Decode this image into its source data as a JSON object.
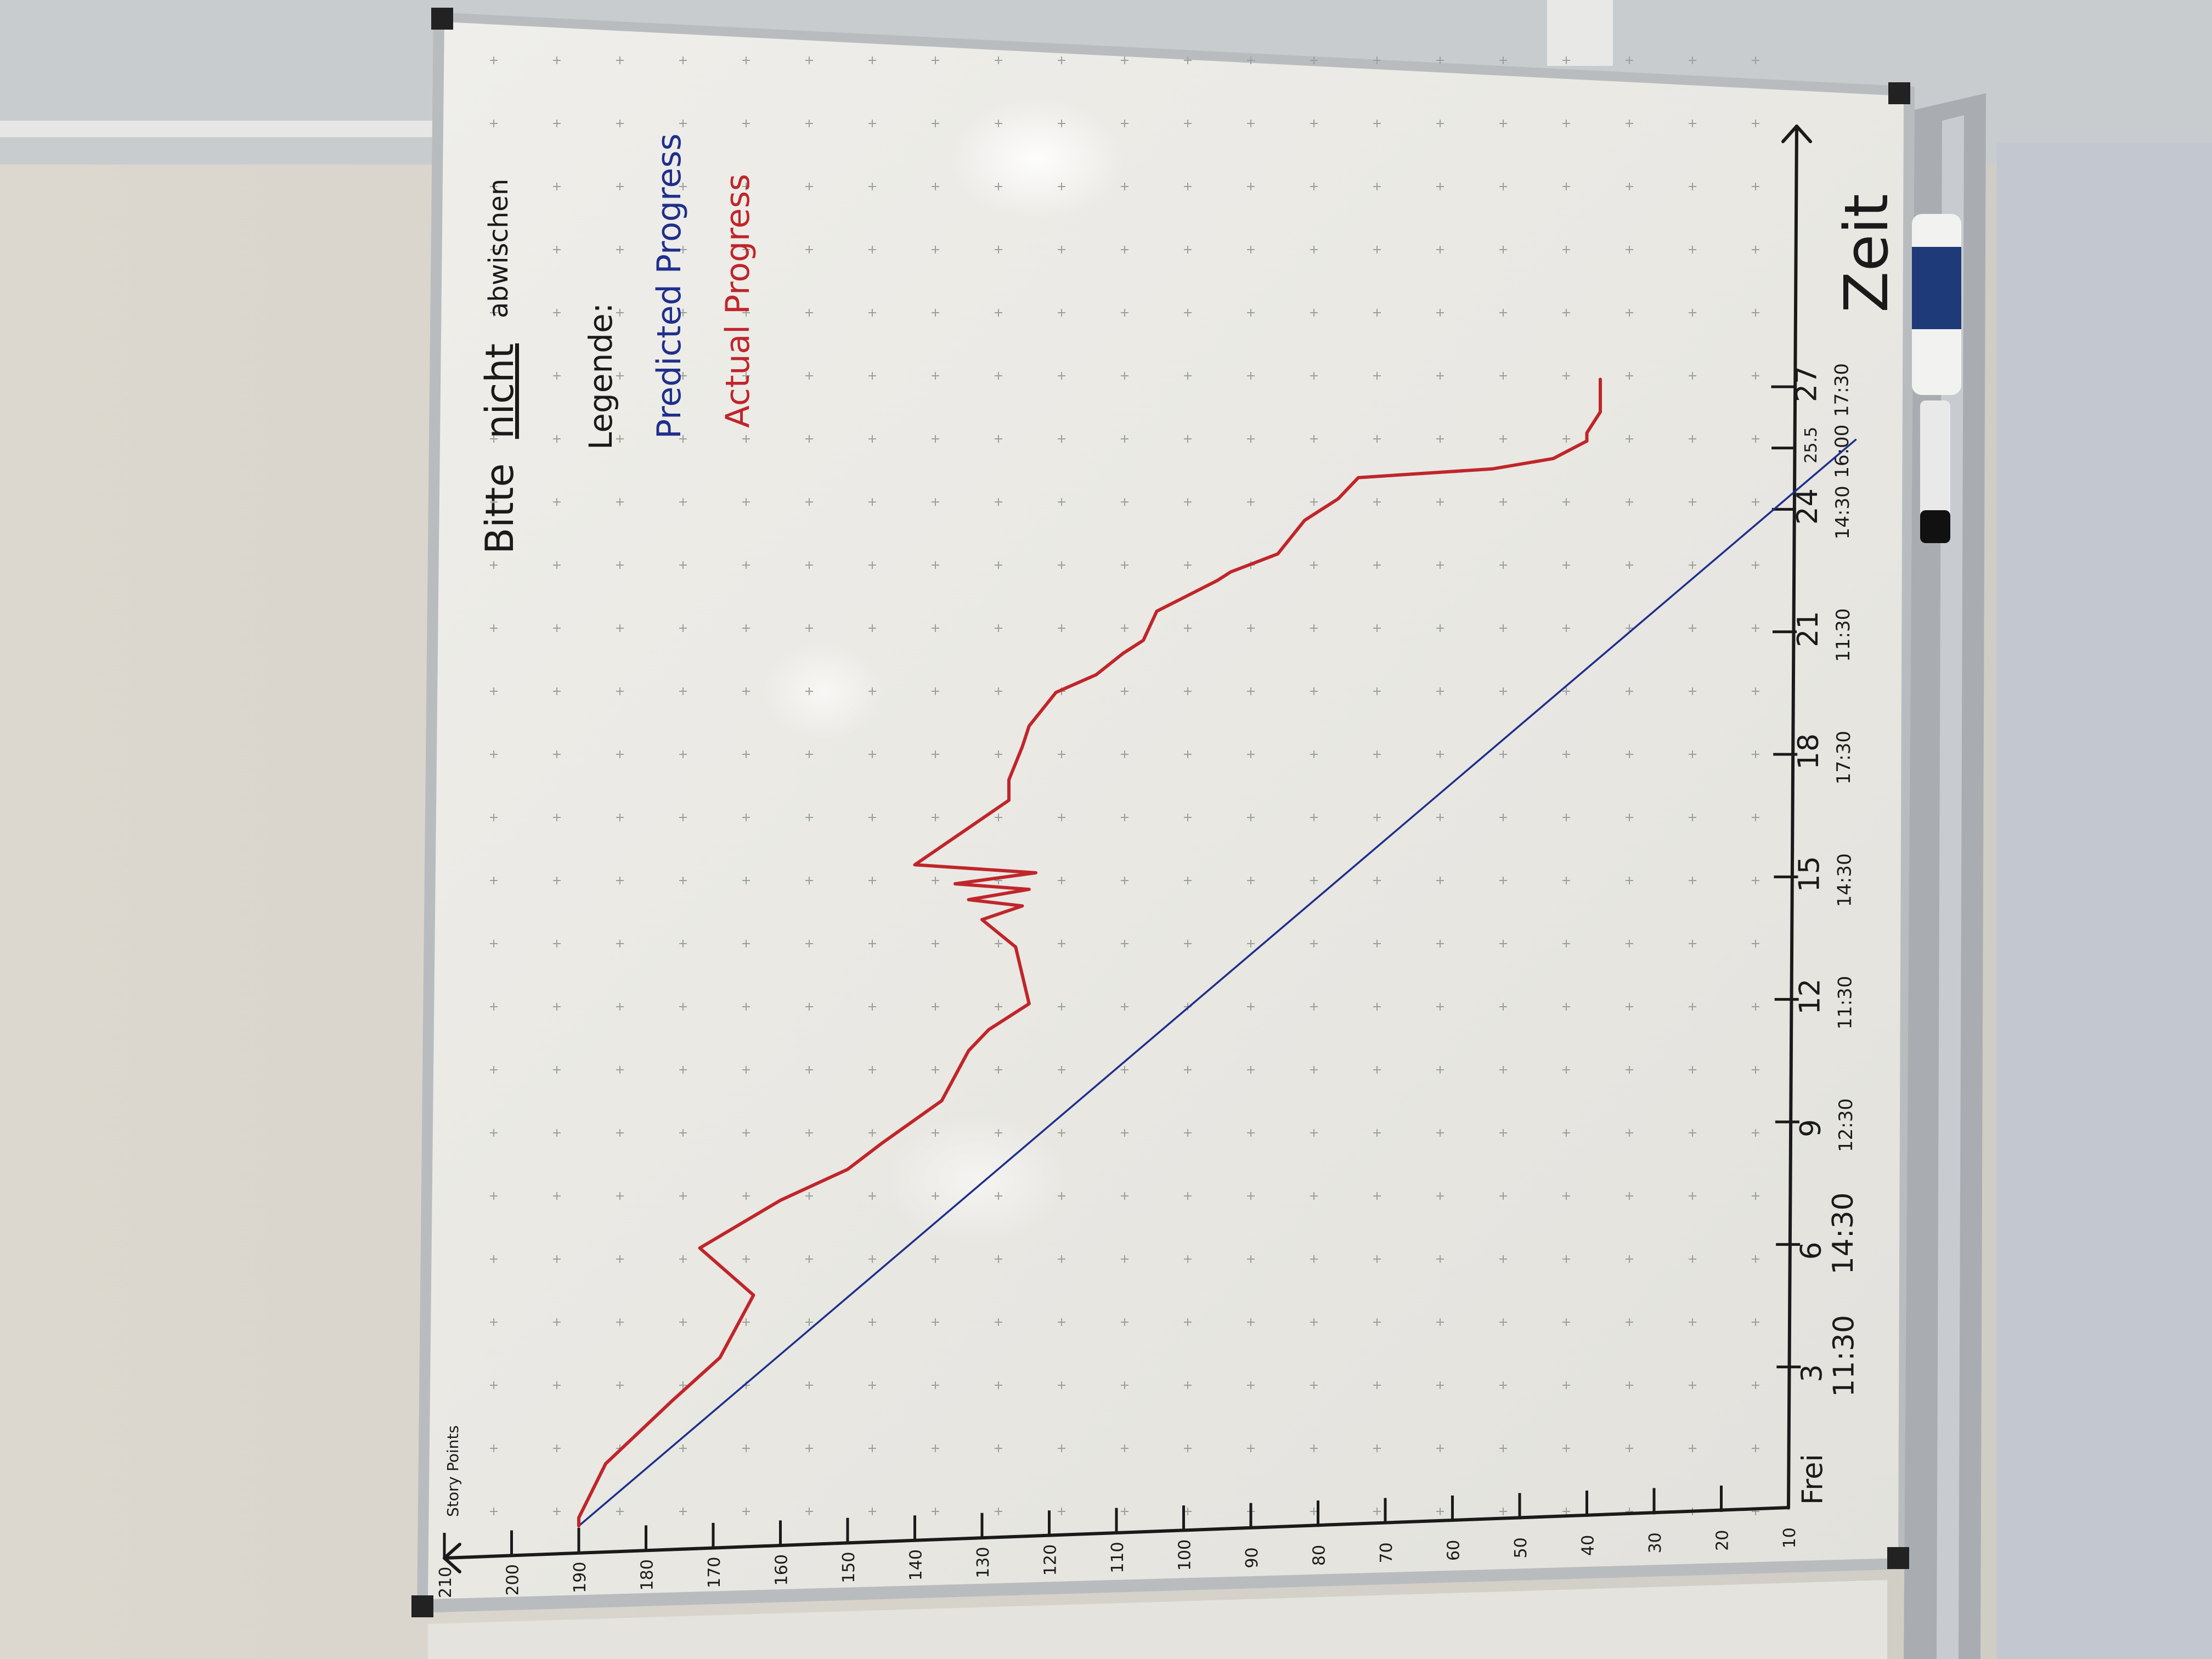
{
  "board": {
    "note_prefix": "Bitte",
    "note_emph": "nicht",
    "note_suffix": "abwischen",
    "legend_title": "Legende:",
    "legend_predicted": "Predicted Progress",
    "legend_actual": "Actual Progress",
    "y_axis_label": "Story Points",
    "x_axis_label": "Zeit"
  },
  "colors": {
    "wall": "#d8d4cc",
    "board": "#ecebe6",
    "frame": "#b9bcbf",
    "marker_black": "#1a1a1a",
    "marker_blue": "#1f2f8c",
    "marker_red": "#c0252a"
  },
  "chart_data": {
    "type": "line",
    "title": "",
    "xlabel": "Zeit",
    "ylabel": "Story Points",
    "y_ticks": [
      "210",
      "200",
      "190",
      "180",
      "170",
      "160",
      "150",
      "140",
      "130",
      "120",
      "110",
      "100",
      "90",
      "80",
      "70",
      "60",
      "50",
      "40",
      "30",
      "20",
      "10"
    ],
    "y_tick_values": [
      210,
      200,
      190,
      180,
      170,
      160,
      150,
      140,
      130,
      120,
      110,
      100,
      90,
      80,
      70,
      60,
      50,
      40,
      30,
      20,
      10
    ],
    "x_ticks": [
      {
        "day": "Frei",
        "time": "",
        "value": 0
      },
      {
        "day": "3",
        "time": "11:30",
        "value": 3
      },
      {
        "day": "6",
        "time": "14:30",
        "value": 6
      },
      {
        "day": "9",
        "time": "12:30",
        "value": 9
      },
      {
        "day": "12",
        "time": "11:30",
        "value": 12
      },
      {
        "day": "15",
        "time": "14:30",
        "value": 15
      },
      {
        "day": "18",
        "time": "17:30",
        "value": 18
      },
      {
        "day": "21",
        "time": "11:30",
        "value": 21
      },
      {
        "day": "24",
        "time": "14:30",
        "value": 24
      },
      {
        "day": "25.5",
        "time": "16:00",
        "value": 25.5
      },
      {
        "day": "27",
        "time": "17:30",
        "value": 27
      }
    ],
    "series": [
      {
        "name": "Predicted Progress",
        "x": [
          0,
          25.5
        ],
        "y": [
          190,
          0
        ]
      },
      {
        "name": "Actual Progress",
        "x": [
          0,
          0.2,
          1.5,
          3,
          4,
          5.5,
          6.7,
          7.8,
          8.5,
          9.1,
          10.1,
          11.3,
          11.8,
          12.4,
          13.8,
          14.5,
          14.8,
          15.0,
          15.2,
          15.4,
          15.6,
          15.9,
          17.4,
          17.9,
          18.7,
          19.2,
          20.0,
          20.4,
          20.9,
          21.2,
          21.9,
          22.6,
          22.8,
          23.2,
          24.0,
          24.5,
          25.0,
          25.1,
          25.3,
          25.7,
          25.9,
          26.4,
          26.9,
          27.0,
          27.2
        ],
        "y": [
          190,
          190,
          186,
          176,
          169,
          164,
          172,
          160,
          150,
          145,
          136,
          132,
          129,
          123,
          125,
          130,
          124,
          132,
          123,
          134,
          122,
          140,
          126,
          126,
          124,
          123,
          119,
          113,
          109,
          106,
          104,
          95,
          93,
          86,
          82,
          77,
          74,
          54,
          45,
          40,
          40,
          38,
          38,
          38,
          38
        ]
      }
    ],
    "ylim": [
      10,
      210
    ]
  }
}
